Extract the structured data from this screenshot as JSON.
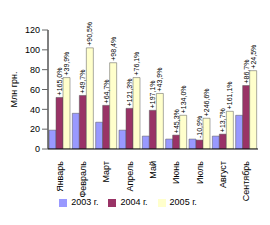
{
  "chart_data": {
    "type": "bar",
    "y_label": "Млн грн.",
    "categories": [
      "Январь",
      "Февраль",
      "Март",
      "Апрель",
      "Май",
      "Июнь",
      "Июль",
      "Август",
      "Сентябрь"
    ],
    "series": [
      {
        "name": "2003 г.",
        "color": "#9999ff",
        "values": [
          19,
          36,
          27,
          19,
          13,
          10,
          10,
          13,
          34
        ],
        "annotations": [
          null,
          null,
          null,
          null,
          null,
          null,
          null,
          null,
          null
        ]
      },
      {
        "name": "2004 г.",
        "color": "#993366",
        "values": [
          52,
          54,
          44,
          41,
          39,
          14,
          9,
          15,
          64
        ],
        "annotations": [
          "+165,0%",
          "+49,7%",
          "+64,7%",
          "+121,3%",
          "+197,1%",
          "+45,3%",
          "-10,9%",
          "+13,7%",
          "+86,7%"
        ]
      },
      {
        "name": "2005 г.",
        "color": "#ffffcc",
        "values": [
          72,
          102,
          87,
          72,
          56,
          34,
          31,
          38,
          79
        ],
        "annotations": [
          "+39,9%",
          "+90,5%",
          "+98,4%",
          "+76,1%",
          "+43,9%",
          "+134,0%",
          "+246,6%",
          "+161,1%",
          "+24,5%"
        ]
      }
    ],
    "ylim": [
      0,
      120
    ],
    "yticks": [
      0,
      20,
      40,
      60,
      80,
      100,
      120
    ],
    "grid": false,
    "legend": "bottom"
  }
}
